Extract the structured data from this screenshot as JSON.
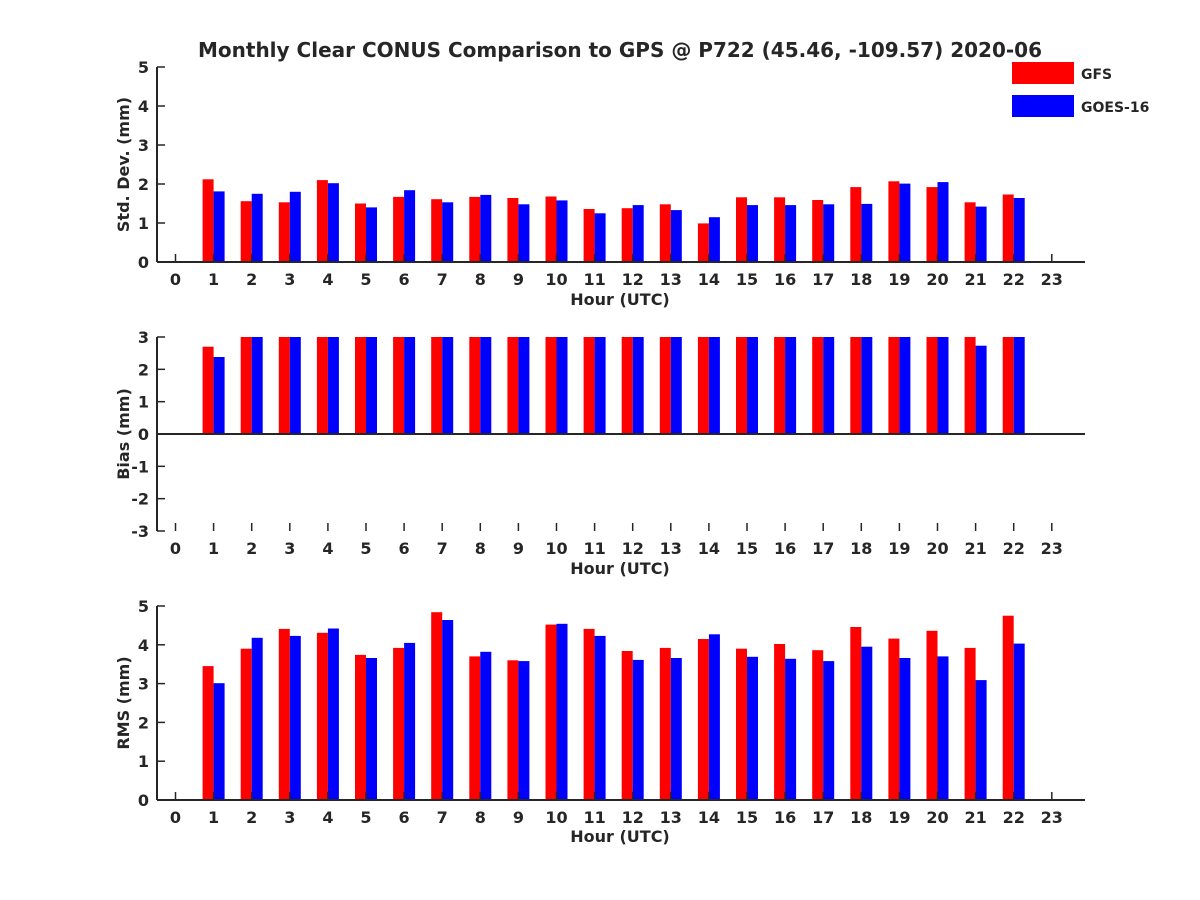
{
  "chart_data": {
    "type": "bar",
    "title": "Monthly Clear CONUS Comparison to GPS @ P722 (45.46, -109.57) 2020-06",
    "legend": {
      "placement": "top-right",
      "entries": [
        "GFS",
        "GOES-16"
      ]
    },
    "series_colors": [
      "#ff0000",
      "#0000ff"
    ],
    "categories": [
      "0",
      "1",
      "2",
      "3",
      "4",
      "5",
      "6",
      "7",
      "8",
      "9",
      "10",
      "11",
      "12",
      "13",
      "14",
      "15",
      "16",
      "17",
      "18",
      "19",
      "20",
      "21",
      "22",
      "23"
    ],
    "panels": [
      {
        "ylabel": "Std. Dev. (mm)",
        "xlabel": "Hour (UTC)",
        "ylim": [
          0,
          5
        ],
        "yticks": [
          "0",
          "1",
          "2",
          "3",
          "4",
          "5"
        ],
        "series": [
          {
            "name": "GFS",
            "values": [
              null,
              2.12,
              1.56,
              1.53,
              2.1,
              1.5,
              1.67,
              1.61,
              1.67,
              1.64,
              1.68,
              1.36,
              1.38,
              1.48,
              0.99,
              1.66,
              1.66,
              1.59,
              1.92,
              2.07,
              1.92,
              1.53,
              1.73,
              null
            ]
          },
          {
            "name": "GOES-16",
            "values": [
              null,
              1.81,
              1.75,
              1.8,
              2.02,
              1.4,
              1.84,
              1.53,
              1.72,
              1.48,
              1.58,
              1.25,
              1.46,
              1.33,
              1.15,
              1.46,
              1.46,
              1.48,
              1.49,
              2.01,
              2.05,
              1.42,
              1.64,
              null
            ]
          }
        ]
      },
      {
        "ylabel": "Bias (mm)",
        "xlabel": "Hour (UTC)",
        "ylim": [
          -3,
          3
        ],
        "yticks": [
          "-3",
          "-2",
          "-1",
          "0",
          "1",
          "2",
          "3"
        ],
        "series": [
          {
            "name": "GFS",
            "values": [
              null,
              2.7,
              3,
              3,
              3,
              3,
              3,
              3,
              3,
              3,
              3,
              3,
              3,
              3,
              3,
              3,
              3,
              3,
              3,
              3,
              3,
              3,
              3,
              null
            ]
          },
          {
            "name": "GOES-16",
            "values": [
              null,
              2.38,
              3,
              3,
              3,
              3,
              3,
              3,
              3,
              3,
              3,
              3,
              3,
              3,
              3,
              3,
              3,
              3,
              3,
              3,
              3,
              2.73,
              3,
              null
            ]
          }
        ]
      },
      {
        "ylabel": "RMS (mm)",
        "xlabel": "Hour (UTC)",
        "ylim": [
          0,
          5
        ],
        "yticks": [
          "0",
          "1",
          "2",
          "3",
          "4",
          "5"
        ],
        "series": [
          {
            "name": "GFS",
            "values": [
              null,
              3.45,
              3.9,
              4.41,
              4.31,
              3.74,
              3.92,
              4.84,
              3.7,
              3.6,
              4.52,
              4.41,
              3.84,
              3.92,
              4.15,
              3.9,
              4.02,
              3.86,
              4.46,
              4.16,
              4.36,
              3.92,
              4.75,
              null
            ]
          },
          {
            "name": "GOES-16",
            "values": [
              null,
              3.01,
              4.18,
              4.23,
              4.42,
              3.66,
              4.05,
              4.64,
              3.82,
              3.58,
              4.54,
              4.23,
              3.61,
              3.66,
              4.27,
              3.69,
              3.64,
              3.58,
              3.95,
              3.66,
              3.7,
              3.09,
              4.03,
              null
            ]
          }
        ]
      }
    ]
  }
}
